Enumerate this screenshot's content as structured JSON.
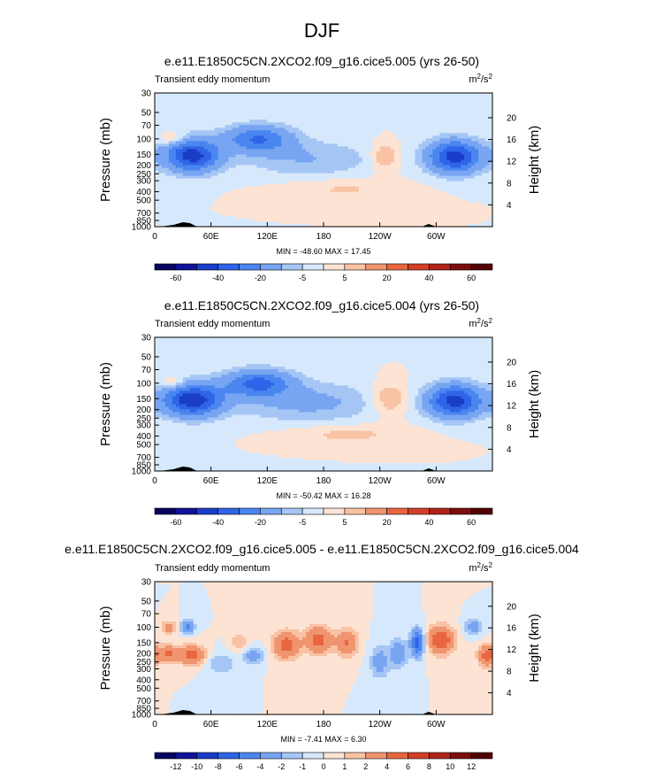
{
  "figure": {
    "title": "DJF"
  },
  "chart_data": [
    {
      "type": "heatmap",
      "title": "e.e11.E1850C5CN.2XCO2.f09_g16.cice5.005 (yrs 26-50)",
      "subtitle_left": "Transient eddy momentum",
      "units": "m²/s²",
      "units_base": "m",
      "units_sup1": "2",
      "units_mid": "/s",
      "units_sup2": "2",
      "ylabel": "Pressure (mb)",
      "ylabel_right": "Height (km)",
      "x_ticks": [
        "0",
        "60E",
        "120E",
        "180",
        "120W",
        "60W"
      ],
      "x_tick_lons": [
        0,
        60,
        120,
        180,
        240,
        300
      ],
      "y_ticks": [
        "30",
        "50",
        "70",
        "100",
        "150",
        "200",
        "250",
        "300",
        "400",
        "500",
        "700",
        "850",
        "1000"
      ],
      "y_tick_values": [
        30,
        50,
        70,
        100,
        150,
        200,
        250,
        300,
        400,
        500,
        700,
        850,
        1000
      ],
      "height_ticks": [
        "20",
        "16",
        "12",
        "8",
        "4"
      ],
      "height_tick_values": [
        20,
        16,
        12,
        8,
        4
      ],
      "stats": "MIN = -48.60   MAX =  17.45",
      "min": -48.6,
      "max": 17.45,
      "levels": [
        -70,
        -60,
        -50,
        -40,
        -30,
        -20,
        -10,
        -5,
        0,
        5,
        10,
        20,
        30,
        40,
        50,
        60,
        70
      ],
      "colorbar_labels": [
        "-60",
        "-40",
        "-20",
        "-5",
        "5",
        "20",
        "40",
        "60"
      ],
      "colorbar_label_levels": [
        -60,
        -40,
        -20,
        -5,
        5,
        20,
        40,
        60
      ],
      "features": [
        {
          "lon": 40,
          "p": 155,
          "value": -45,
          "sx": 20,
          "sy": 0.3
        },
        {
          "lon": 110,
          "p": 100,
          "value": -30,
          "sx": 25,
          "sy": 0.25
        },
        {
          "lon": 165,
          "p": 170,
          "value": -10,
          "sx": 50,
          "sy": 0.35
        },
        {
          "lon": 320,
          "p": 160,
          "value": -45,
          "sx": 20,
          "sy": 0.3
        },
        {
          "lon": 245,
          "p": 160,
          "value": 12,
          "sx": 10,
          "sy": 0.25
        },
        {
          "lon": 20,
          "p": 100,
          "value": 10,
          "sx": 10,
          "sy": 0.12
        },
        {
          "lon": 200,
          "p": 370,
          "value": 6,
          "sx": 45,
          "sy": 0.2
        }
      ]
    },
    {
      "type": "heatmap",
      "title": "e.e11.E1850C5CN.2XCO2.f09_g16.cice5.004 (yrs 26-50)",
      "subtitle_left": "Transient eddy momentum",
      "units": "m²/s²",
      "units_base": "m",
      "units_sup1": "2",
      "units_mid": "/s",
      "units_sup2": "2",
      "ylabel": "Pressure (mb)",
      "ylabel_right": "Height (km)",
      "x_ticks": [
        "0",
        "60E",
        "120E",
        "180",
        "120W",
        "60W"
      ],
      "x_tick_lons": [
        0,
        60,
        120,
        180,
        240,
        300
      ],
      "y_ticks": [
        "30",
        "50",
        "70",
        "100",
        "150",
        "200",
        "250",
        "300",
        "400",
        "500",
        "700",
        "850",
        "1000"
      ],
      "y_tick_values": [
        30,
        50,
        70,
        100,
        150,
        200,
        250,
        300,
        400,
        500,
        700,
        850,
        1000
      ],
      "height_ticks": [
        "20",
        "16",
        "12",
        "8",
        "4"
      ],
      "height_tick_values": [
        20,
        16,
        12,
        8,
        4
      ],
      "stats": "MIN = -50.42   MAX =  16.28",
      "min": -50.42,
      "max": 16.28,
      "levels": [
        -70,
        -60,
        -50,
        -40,
        -30,
        -20,
        -10,
        -5,
        0,
        5,
        10,
        20,
        30,
        40,
        50,
        60,
        70
      ],
      "colorbar_labels": [
        "-60",
        "-40",
        "-20",
        "-5",
        "5",
        "20",
        "40",
        "60"
      ],
      "colorbar_label_levels": [
        -60,
        -40,
        -20,
        -5,
        5,
        20,
        40,
        60
      ],
      "features": [
        {
          "lon": 40,
          "p": 155,
          "value": -47,
          "sx": 22,
          "sy": 0.3
        },
        {
          "lon": 110,
          "p": 100,
          "value": -32,
          "sx": 25,
          "sy": 0.25
        },
        {
          "lon": 165,
          "p": 165,
          "value": -12,
          "sx": 55,
          "sy": 0.38
        },
        {
          "lon": 320,
          "p": 160,
          "value": -45,
          "sx": 20,
          "sy": 0.3
        },
        {
          "lon": 250,
          "p": 150,
          "value": 12,
          "sx": 14,
          "sy": 0.3
        },
        {
          "lon": 20,
          "p": 100,
          "value": 10,
          "sx": 10,
          "sy": 0.12
        },
        {
          "lon": 205,
          "p": 380,
          "value": 7,
          "sx": 45,
          "sy": 0.18
        }
      ]
    },
    {
      "type": "heatmap",
      "title": "e.e11.E1850C5CN.2XCO2.f09_g16.cice5.005 - e.e11.E1850C5CN.2XCO2.f09_g16.cice5.004",
      "subtitle_left": "Transient eddy momentum",
      "units": "m²/s²",
      "units_base": "m",
      "units_sup1": "2",
      "units_mid": "/s",
      "units_sup2": "2",
      "ylabel": "Pressure (mb)",
      "ylabel_right": "Height (km)",
      "x_ticks": [
        "0",
        "60E",
        "120E",
        "180",
        "120W",
        "60W"
      ],
      "x_tick_lons": [
        0,
        60,
        120,
        180,
        240,
        300
      ],
      "y_ticks": [
        "30",
        "50",
        "70",
        "100",
        "150",
        "200",
        "250",
        "300",
        "400",
        "500",
        "700",
        "850",
        "1000"
      ],
      "y_tick_values": [
        30,
        50,
        70,
        100,
        150,
        200,
        250,
        300,
        400,
        500,
        700,
        850,
        1000
      ],
      "height_ticks": [
        "20",
        "16",
        "12",
        "8",
        "4"
      ],
      "height_tick_values": [
        20,
        16,
        12,
        8,
        4
      ],
      "stats": "MIN = -7.41   MAX =  6.30",
      "min": -7.41,
      "max": 6.3,
      "levels": [
        -14,
        -12,
        -10,
        -8,
        -6,
        -4,
        -2,
        -1,
        0,
        1,
        2,
        4,
        6,
        8,
        10,
        12,
        14
      ],
      "colorbar_labels": [
        "-12",
        "-10",
        "-8",
        "-6",
        "-4",
        "-2",
        "-1",
        "0",
        "1",
        "2",
        "4",
        "6",
        "8",
        "10",
        "12"
      ],
      "colorbar_label_levels": [
        -12,
        -10,
        -8,
        -6,
        -4,
        -2,
        -1,
        0,
        1,
        2,
        4,
        6,
        8,
        10,
        12
      ],
      "features": [
        {
          "lon": 15,
          "p": 100,
          "value": 3,
          "sx": 6,
          "sy": 0.12
        },
        {
          "lon": 35,
          "p": 100,
          "value": -5,
          "sx": 5,
          "sy": 0.12
        },
        {
          "lon": 15,
          "p": 200,
          "value": 4,
          "sx": 8,
          "sy": 0.15
        },
        {
          "lon": 40,
          "p": 210,
          "value": 5,
          "sx": 10,
          "sy": 0.18
        },
        {
          "lon": 70,
          "p": 260,
          "value": -2,
          "sx": 12,
          "sy": 0.2
        },
        {
          "lon": 90,
          "p": 150,
          "value": 2,
          "sx": 6,
          "sy": 0.2
        },
        {
          "lon": 105,
          "p": 210,
          "value": -3,
          "sx": 8,
          "sy": 0.15
        },
        {
          "lon": 140,
          "p": 160,
          "value": 5,
          "sx": 10,
          "sy": 0.25
        },
        {
          "lon": 175,
          "p": 140,
          "value": 5,
          "sx": 10,
          "sy": 0.25
        },
        {
          "lon": 205,
          "p": 150,
          "value": 4,
          "sx": 8,
          "sy": 0.25
        },
        {
          "lon": 240,
          "p": 250,
          "value": -3,
          "sx": 7,
          "sy": 0.3
        },
        {
          "lon": 260,
          "p": 200,
          "value": -4,
          "sx": 6,
          "sy": 0.25
        },
        {
          "lon": 280,
          "p": 150,
          "value": -7,
          "sx": 5,
          "sy": 0.25
        },
        {
          "lon": 305,
          "p": 140,
          "value": 6,
          "sx": 10,
          "sy": 0.25
        },
        {
          "lon": 340,
          "p": 100,
          "value": -3,
          "sx": 7,
          "sy": 0.15
        },
        {
          "lon": 355,
          "p": 210,
          "value": 5,
          "sx": 7,
          "sy": 0.2
        }
      ]
    }
  ]
}
